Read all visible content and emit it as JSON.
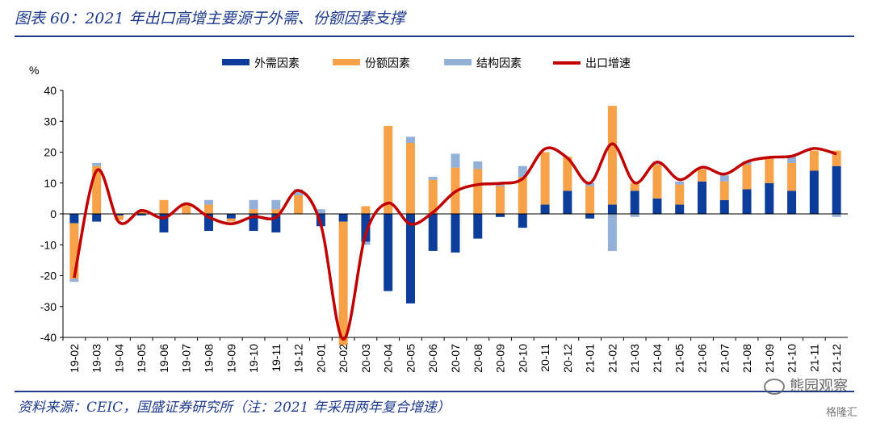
{
  "header": {
    "title": "图表 60：2021 年出口高增主要源于外需、份额因素支撑"
  },
  "footer": {
    "source": "资料来源：CEIC，国盛证券研究所（注：2021 年采用两年复合增速）"
  },
  "watermark": {
    "main": "熊园观察",
    "sub": "格隆汇"
  },
  "colors": {
    "external": "#0c3d9a",
    "share": "#f7a148",
    "structure": "#93b0d9",
    "growth": "#c00000",
    "brand": "#1f3b8c"
  },
  "chart_data": {
    "type": "bar",
    "ylabel": "%",
    "ylim": [
      -40,
      40
    ],
    "yticks": [
      40,
      30,
      20,
      10,
      0,
      -10,
      -20,
      -30,
      -40
    ],
    "legend_position": "top",
    "categories": [
      "19-02",
      "19-03",
      "19-04",
      "19-05",
      "19-06",
      "19-07",
      "19-08",
      "19-09",
      "19-10",
      "19-11",
      "19-12",
      "20-01",
      "20-02",
      "20-03",
      "20-04",
      "20-05",
      "20-06",
      "20-07",
      "20-08",
      "20-09",
      "20-10",
      "20-11",
      "20-12",
      "21-01",
      "21-02",
      "21-03",
      "21-04",
      "21-05",
      "21-06",
      "21-07",
      "21-08",
      "21-09",
      "21-10",
      "21-11",
      "21-12"
    ],
    "series": [
      {
        "name": "外需因素",
        "kind": "bar",
        "values": [
          -3,
          -2.5,
          -0.5,
          -0.5,
          -6,
          0,
          -5.5,
          -1.5,
          -5.5,
          -6,
          0,
          -4,
          -2.5,
          -9,
          -25,
          -29,
          -12,
          -12.5,
          -8,
          -1,
          -4.5,
          3,
          7.5,
          -1.5,
          3,
          7.5,
          5,
          3,
          10.5,
          4.5,
          8,
          10,
          7.5,
          14,
          15.5
        ]
      },
      {
        "name": "份额因素",
        "kind": "bar",
        "values": [
          -18,
          15.5,
          -1.5,
          1,
          4.5,
          3,
          3,
          -1,
          1.5,
          1.5,
          6,
          0,
          -40,
          2.5,
          28.5,
          23,
          11,
          15,
          14.5,
          9,
          12,
          17,
          11,
          9,
          32,
          2.5,
          11,
          6.5,
          4,
          6,
          8,
          8,
          9,
          6.5,
          5
        ]
      },
      {
        "name": "结构因素",
        "kind": "bar",
        "values": [
          -1,
          1,
          0,
          0,
          0,
          0,
          1.5,
          0,
          3,
          3,
          2,
          1.5,
          0,
          -1,
          0,
          2,
          1,
          4.5,
          2.5,
          1,
          3.5,
          0,
          0,
          1,
          -12,
          -1,
          1,
          1,
          0,
          2,
          1,
          0,
          2,
          0,
          -1
        ]
      },
      {
        "name": "出口增速",
        "kind": "line",
        "values": [
          -20.7,
          14.0,
          -2.7,
          1.1,
          -1.3,
          3.3,
          -1.0,
          -3.2,
          -0.9,
          -1.1,
          7.6,
          -3.5,
          -40.6,
          -6.6,
          3.5,
          -3.3,
          0.5,
          7.2,
          9.5,
          9.9,
          11.4,
          21.1,
          18.1,
          10.0,
          22.7,
          10.1,
          16.8,
          11.1,
          15.1,
          12.9,
          16.9,
          18.3,
          18.7,
          21.2,
          19.4
        ]
      }
    ]
  }
}
